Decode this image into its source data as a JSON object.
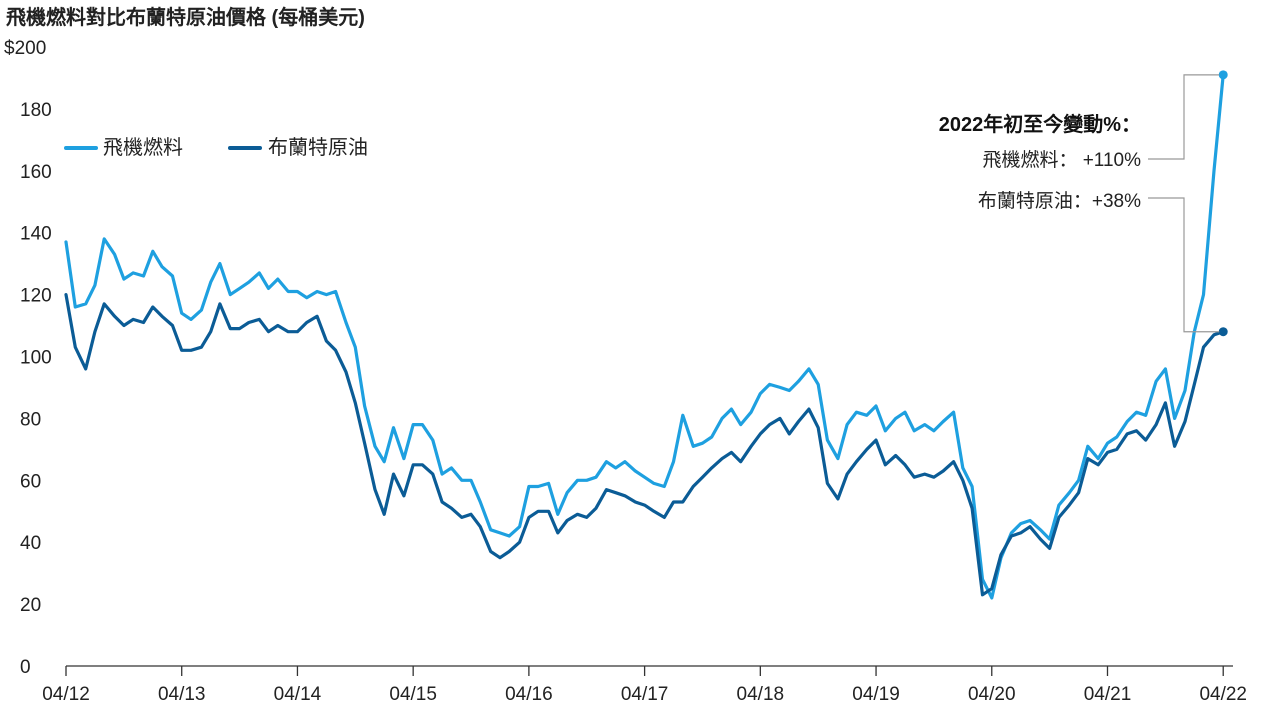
{
  "colors": {
    "jet_fuel": "#1ea0e0",
    "brent": "#0b5c96",
    "axis": "#333333",
    "leader": "#999999"
  },
  "chart_data": {
    "type": "line",
    "title": "飛機燃料對比布蘭特原油價格 (每桶美元)",
    "ylim": [
      0,
      200
    ],
    "xlim": [
      2012.25,
      2022.3
    ],
    "yticks": [
      {
        "value": 0,
        "label": "0"
      },
      {
        "value": 20,
        "label": "20"
      },
      {
        "value": 40,
        "label": "40"
      },
      {
        "value": 60,
        "label": "60"
      },
      {
        "value": 80,
        "label": "80"
      },
      {
        "value": 100,
        "label": "100"
      },
      {
        "value": 120,
        "label": "120"
      },
      {
        "value": 140,
        "label": "140"
      },
      {
        "value": 160,
        "label": "160"
      },
      {
        "value": 180,
        "label": "180"
      },
      {
        "value": 200,
        "label": "$200"
      }
    ],
    "xticks": [
      {
        "value": 2012.25,
        "label": "04/12"
      },
      {
        "value": 2013.25,
        "label": "04/13"
      },
      {
        "value": 2014.25,
        "label": "04/14"
      },
      {
        "value": 2015.25,
        "label": "04/15"
      },
      {
        "value": 2016.25,
        "label": "04/16"
      },
      {
        "value": 2017.25,
        "label": "04/17"
      },
      {
        "value": 2018.25,
        "label": "04/18"
      },
      {
        "value": 2019.25,
        "label": "04/19"
      },
      {
        "value": 2020.25,
        "label": "04/20"
      },
      {
        "value": 2021.25,
        "label": "04/21"
      },
      {
        "value": 2022.25,
        "label": "04/22"
      }
    ],
    "grid": false,
    "legend_position": "top-left",
    "series": [
      {
        "name": "飛機燃料",
        "color": "#1ea0e0",
        "points": [
          [
            2012.25,
            137
          ],
          [
            2012.33,
            116
          ],
          [
            2012.42,
            117
          ],
          [
            2012.5,
            123
          ],
          [
            2012.58,
            138
          ],
          [
            2012.67,
            133
          ],
          [
            2012.75,
            125
          ],
          [
            2012.83,
            127
          ],
          [
            2012.92,
            126
          ],
          [
            2013.0,
            134
          ],
          [
            2013.08,
            129
          ],
          [
            2013.17,
            126
          ],
          [
            2013.25,
            114
          ],
          [
            2013.33,
            112
          ],
          [
            2013.42,
            115
          ],
          [
            2013.5,
            124
          ],
          [
            2013.58,
            130
          ],
          [
            2013.67,
            120
          ],
          [
            2013.75,
            122
          ],
          [
            2013.83,
            124
          ],
          [
            2013.92,
            127
          ],
          [
            2014.0,
            122
          ],
          [
            2014.08,
            125
          ],
          [
            2014.17,
            121
          ],
          [
            2014.25,
            121
          ],
          [
            2014.33,
            119
          ],
          [
            2014.42,
            121
          ],
          [
            2014.5,
            120
          ],
          [
            2014.58,
            121
          ],
          [
            2014.67,
            111
          ],
          [
            2014.75,
            103
          ],
          [
            2014.83,
            84
          ],
          [
            2014.92,
            71
          ],
          [
            2015.0,
            66
          ],
          [
            2015.08,
            77
          ],
          [
            2015.17,
            67
          ],
          [
            2015.25,
            78
          ],
          [
            2015.33,
            78
          ],
          [
            2015.42,
            73
          ],
          [
            2015.5,
            62
          ],
          [
            2015.58,
            64
          ],
          [
            2015.67,
            60
          ],
          [
            2015.75,
            60
          ],
          [
            2015.83,
            53
          ],
          [
            2015.92,
            44
          ],
          [
            2016.0,
            43
          ],
          [
            2016.08,
            42
          ],
          [
            2016.17,
            45
          ],
          [
            2016.25,
            58
          ],
          [
            2016.33,
            58
          ],
          [
            2016.42,
            59
          ],
          [
            2016.5,
            49
          ],
          [
            2016.58,
            56
          ],
          [
            2016.67,
            60
          ],
          [
            2016.75,
            60
          ],
          [
            2016.83,
            61
          ],
          [
            2016.92,
            66
          ],
          [
            2017.0,
            64
          ],
          [
            2017.08,
            66
          ],
          [
            2017.17,
            63
          ],
          [
            2017.25,
            61
          ],
          [
            2017.33,
            59
          ],
          [
            2017.42,
            58
          ],
          [
            2017.5,
            66
          ],
          [
            2017.58,
            81
          ],
          [
            2017.67,
            71
          ],
          [
            2017.75,
            72
          ],
          [
            2017.83,
            74
          ],
          [
            2017.92,
            80
          ],
          [
            2018.0,
            83
          ],
          [
            2018.08,
            78
          ],
          [
            2018.17,
            82
          ],
          [
            2018.25,
            88
          ],
          [
            2018.33,
            91
          ],
          [
            2018.42,
            90
          ],
          [
            2018.5,
            89
          ],
          [
            2018.58,
            92
          ],
          [
            2018.67,
            96
          ],
          [
            2018.75,
            91
          ],
          [
            2018.83,
            73
          ],
          [
            2018.92,
            67
          ],
          [
            2019.0,
            78
          ],
          [
            2019.08,
            82
          ],
          [
            2019.17,
            81
          ],
          [
            2019.25,
            84
          ],
          [
            2019.33,
            76
          ],
          [
            2019.42,
            80
          ],
          [
            2019.5,
            82
          ],
          [
            2019.58,
            76
          ],
          [
            2019.67,
            78
          ],
          [
            2019.75,
            76
          ],
          [
            2019.83,
            79
          ],
          [
            2019.92,
            82
          ],
          [
            2020.0,
            64
          ],
          [
            2020.08,
            58
          ],
          [
            2020.17,
            28
          ],
          [
            2020.25,
            22
          ],
          [
            2020.33,
            35
          ],
          [
            2020.42,
            43
          ],
          [
            2020.5,
            46
          ],
          [
            2020.58,
            47
          ],
          [
            2020.67,
            44
          ],
          [
            2020.75,
            41
          ],
          [
            2020.83,
            52
          ],
          [
            2020.92,
            56
          ],
          [
            2021.0,
            60
          ],
          [
            2021.08,
            71
          ],
          [
            2021.17,
            67
          ],
          [
            2021.25,
            72
          ],
          [
            2021.33,
            74
          ],
          [
            2021.42,
            79
          ],
          [
            2021.5,
            82
          ],
          [
            2021.58,
            81
          ],
          [
            2021.67,
            92
          ],
          [
            2021.75,
            96
          ],
          [
            2021.83,
            80
          ],
          [
            2021.92,
            89
          ],
          [
            2022.0,
            108
          ],
          [
            2022.08,
            120
          ],
          [
            2022.17,
            160
          ],
          [
            2022.25,
            191
          ]
        ]
      },
      {
        "name": "布蘭特原油",
        "color": "#0b5c96",
        "points": [
          [
            2012.25,
            120
          ],
          [
            2012.33,
            103
          ],
          [
            2012.42,
            96
          ],
          [
            2012.5,
            108
          ],
          [
            2012.58,
            117
          ],
          [
            2012.67,
            113
          ],
          [
            2012.75,
            110
          ],
          [
            2012.83,
            112
          ],
          [
            2012.92,
            111
          ],
          [
            2013.0,
            116
          ],
          [
            2013.08,
            113
          ],
          [
            2013.17,
            110
          ],
          [
            2013.25,
            102
          ],
          [
            2013.33,
            102
          ],
          [
            2013.42,
            103
          ],
          [
            2013.5,
            108
          ],
          [
            2013.58,
            117
          ],
          [
            2013.67,
            109
          ],
          [
            2013.75,
            109
          ],
          [
            2013.83,
            111
          ],
          [
            2013.92,
            112
          ],
          [
            2014.0,
            108
          ],
          [
            2014.08,
            110
          ],
          [
            2014.17,
            108
          ],
          [
            2014.25,
            108
          ],
          [
            2014.33,
            111
          ],
          [
            2014.42,
            113
          ],
          [
            2014.5,
            105
          ],
          [
            2014.58,
            102
          ],
          [
            2014.67,
            95
          ],
          [
            2014.75,
            85
          ],
          [
            2014.83,
            72
          ],
          [
            2014.92,
            57
          ],
          [
            2015.0,
            49
          ],
          [
            2015.08,
            62
          ],
          [
            2015.17,
            55
          ],
          [
            2015.25,
            65
          ],
          [
            2015.33,
            65
          ],
          [
            2015.42,
            62
          ],
          [
            2015.5,
            53
          ],
          [
            2015.58,
            51
          ],
          [
            2015.67,
            48
          ],
          [
            2015.75,
            49
          ],
          [
            2015.83,
            45
          ],
          [
            2015.92,
            37
          ],
          [
            2016.0,
            35
          ],
          [
            2016.08,
            37
          ],
          [
            2016.17,
            40
          ],
          [
            2016.25,
            48
          ],
          [
            2016.33,
            50
          ],
          [
            2016.42,
            50
          ],
          [
            2016.5,
            43
          ],
          [
            2016.58,
            47
          ],
          [
            2016.67,
            49
          ],
          [
            2016.75,
            48
          ],
          [
            2016.83,
            51
          ],
          [
            2016.92,
            57
          ],
          [
            2017.0,
            56
          ],
          [
            2017.08,
            55
          ],
          [
            2017.17,
            53
          ],
          [
            2017.25,
            52
          ],
          [
            2017.33,
            50
          ],
          [
            2017.42,
            48
          ],
          [
            2017.5,
            53
          ],
          [
            2017.58,
            53
          ],
          [
            2017.67,
            58
          ],
          [
            2017.75,
            61
          ],
          [
            2017.83,
            64
          ],
          [
            2017.92,
            67
          ],
          [
            2018.0,
            69
          ],
          [
            2018.08,
            66
          ],
          [
            2018.17,
            71
          ],
          [
            2018.25,
            75
          ],
          [
            2018.33,
            78
          ],
          [
            2018.42,
            80
          ],
          [
            2018.5,
            75
          ],
          [
            2018.58,
            79
          ],
          [
            2018.67,
            83
          ],
          [
            2018.75,
            77
          ],
          [
            2018.83,
            59
          ],
          [
            2018.92,
            54
          ],
          [
            2019.0,
            62
          ],
          [
            2019.08,
            66
          ],
          [
            2019.17,
            70
          ],
          [
            2019.25,
            73
          ],
          [
            2019.33,
            65
          ],
          [
            2019.42,
            68
          ],
          [
            2019.5,
            65
          ],
          [
            2019.58,
            61
          ],
          [
            2019.67,
            62
          ],
          [
            2019.75,
            61
          ],
          [
            2019.83,
            63
          ],
          [
            2019.92,
            66
          ],
          [
            2020.0,
            60
          ],
          [
            2020.08,
            51
          ],
          [
            2020.17,
            23
          ],
          [
            2020.25,
            25
          ],
          [
            2020.33,
            36
          ],
          [
            2020.42,
            42
          ],
          [
            2020.5,
            43
          ],
          [
            2020.58,
            45
          ],
          [
            2020.67,
            41
          ],
          [
            2020.75,
            38
          ],
          [
            2020.83,
            48
          ],
          [
            2020.92,
            52
          ],
          [
            2021.0,
            56
          ],
          [
            2021.08,
            67
          ],
          [
            2021.17,
            65
          ],
          [
            2021.25,
            69
          ],
          [
            2021.33,
            70
          ],
          [
            2021.42,
            75
          ],
          [
            2021.5,
            76
          ],
          [
            2021.58,
            73
          ],
          [
            2021.67,
            78
          ],
          [
            2021.75,
            85
          ],
          [
            2021.83,
            71
          ],
          [
            2021.92,
            79
          ],
          [
            2022.0,
            91
          ],
          [
            2022.08,
            103
          ],
          [
            2022.17,
            107
          ],
          [
            2022.25,
            108
          ]
        ]
      }
    ],
    "annotation": {
      "heading": "2022年初至今變動%：",
      "lines": [
        {
          "label": "飛機燃料： +110%",
          "series": 0
        },
        {
          "label": "布蘭特原油：+38%",
          "series": 1
        }
      ]
    }
  }
}
